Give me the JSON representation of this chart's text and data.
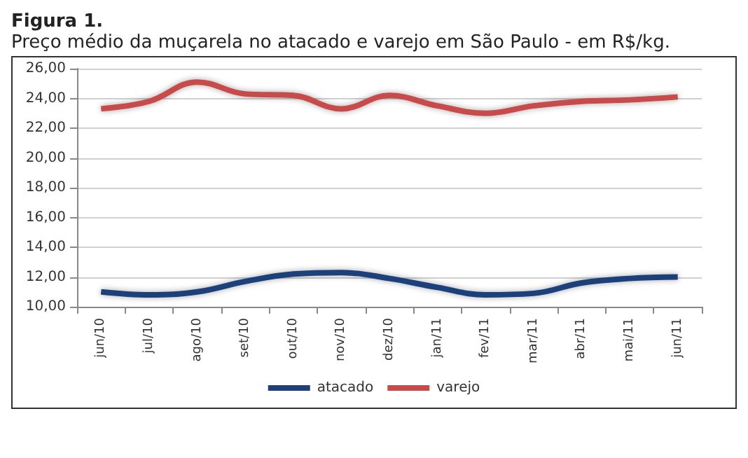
{
  "chart_data": {
    "type": "line",
    "title": "Figura 1.",
    "subtitle": "Preço médio da muçarela no atacado e varejo em São Paulo - em R$/kg.",
    "categories": [
      "jun/10",
      "jul/10",
      "ago/10",
      "set/10",
      "out/10",
      "nov/10",
      "dez/10",
      "jan/11",
      "fev/11",
      "mar/11",
      "abr/11",
      "mai/11",
      "jun/11"
    ],
    "series": [
      {
        "name": "atacado",
        "color": "#1f3f7a",
        "values": [
          11.0,
          10.8,
          11.0,
          11.7,
          12.2,
          12.3,
          11.9,
          11.3,
          10.8,
          10.9,
          11.6,
          11.9,
          12.0
        ]
      },
      {
        "name": "varejo",
        "color": "#c84b4b",
        "values": [
          23.3,
          23.8,
          25.1,
          24.3,
          24.2,
          23.3,
          24.2,
          23.5,
          23.0,
          23.5,
          23.8,
          23.9,
          24.1
        ]
      }
    ],
    "ylim": [
      10,
      26
    ],
    "yticks": [
      {
        "value": 10,
        "label": "10,00"
      },
      {
        "value": 12,
        "label": "12,00"
      },
      {
        "value": 14,
        "label": "14,00"
      },
      {
        "value": 16,
        "label": "16,00"
      },
      {
        "value": 18,
        "label": "18,00"
      },
      {
        "value": 20,
        "label": "20,00"
      },
      {
        "value": 22,
        "label": "22,00"
      },
      {
        "value": 24,
        "label": "24,00"
      },
      {
        "value": 26,
        "label": "26,00"
      }
    ],
    "grid": "y",
    "legend": "bottom",
    "marker": "none",
    "line_style": "solid"
  }
}
